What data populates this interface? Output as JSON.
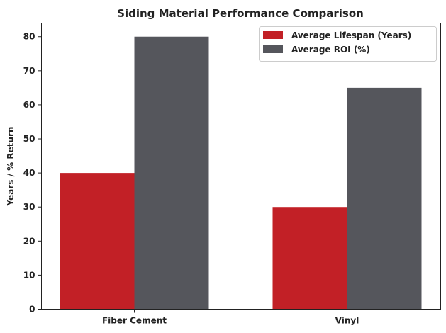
{
  "chart_data": {
    "type": "bar",
    "title": "Siding Material Performance Comparison",
    "xlabel": "",
    "ylabel": "Years / % Return",
    "categories": [
      "Fiber Cement",
      "Vinyl"
    ],
    "series": [
      {
        "name": "Average Lifespan (Years)",
        "values": [
          40,
          30
        ],
        "color": "#c22026"
      },
      {
        "name": "Average ROI (%)",
        "values": [
          80,
          65
        ],
        "color": "#55565c"
      }
    ],
    "ylim": [
      0,
      84
    ],
    "yticks": [
      0,
      10,
      20,
      30,
      40,
      50,
      60,
      70,
      80
    ],
    "grid": false,
    "legend_position": "top-right"
  }
}
